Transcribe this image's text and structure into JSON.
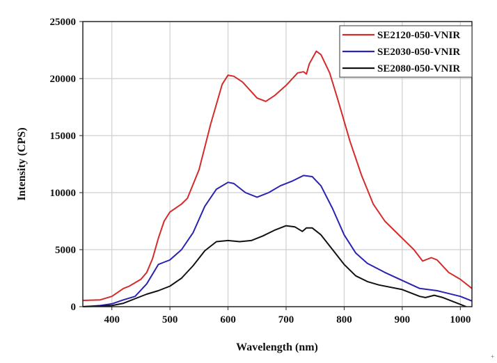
{
  "chart_data": {
    "type": "line",
    "title": "",
    "xlabel": "Wavelength (nm)",
    "ylabel": "Intensity (CPS)",
    "xlim": [
      350,
      1020
    ],
    "ylim": [
      0,
      25000
    ],
    "xticks": [
      400,
      500,
      600,
      700,
      800,
      900,
      1000
    ],
    "yticks": [
      0,
      5000,
      10000,
      15000,
      20000,
      25000
    ],
    "grid": true,
    "legend_position": "top-right",
    "series": [
      {
        "name": "SE2120-050-VNIR",
        "color": "#d42a2a",
        "x": [
          350,
          380,
          400,
          420,
          430,
          450,
          460,
          470,
          480,
          490,
          500,
          520,
          530,
          550,
          570,
          590,
          600,
          610,
          625,
          650,
          665,
          680,
          700,
          720,
          730,
          735,
          740,
          752,
          760,
          775,
          790,
          810,
          830,
          850,
          870,
          900,
          920,
          935,
          950,
          960,
          980,
          1000,
          1020
        ],
        "y": [
          550,
          600,
          900,
          1600,
          1800,
          2400,
          3000,
          4200,
          6000,
          7500,
          8300,
          9000,
          9500,
          12000,
          16000,
          19500,
          20300,
          20200,
          19700,
          18300,
          18000,
          18500,
          19400,
          20500,
          20600,
          20400,
          21300,
          22400,
          22100,
          20500,
          18000,
          14500,
          11500,
          9000,
          7500,
          6000,
          5000,
          4000,
          4300,
          4100,
          3000,
          2400,
          1600
        ]
      },
      {
        "name": "SE2030-050-VNIR",
        "color": "#2a22b0",
        "x": [
          350,
          380,
          400,
          420,
          440,
          460,
          480,
          490,
          500,
          520,
          540,
          560,
          580,
          600,
          610,
          630,
          650,
          670,
          690,
          710,
          730,
          745,
          760,
          780,
          800,
          820,
          840,
          870,
          900,
          930,
          960,
          1000,
          1020
        ],
        "y": [
          0,
          100,
          250,
          600,
          900,
          2000,
          3700,
          3900,
          4100,
          5000,
          6500,
          8800,
          10300,
          10900,
          10800,
          10000,
          9600,
          10000,
          10600,
          11000,
          11500,
          11400,
          10600,
          8600,
          6300,
          4700,
          3800,
          3000,
          2300,
          1600,
          1400,
          900,
          500
        ]
      },
      {
        "name": "SE2080-050-VNIR",
        "color": "#111111",
        "x": [
          350,
          400,
          420,
          440,
          460,
          480,
          500,
          520,
          540,
          560,
          580,
          600,
          620,
          640,
          660,
          680,
          700,
          715,
          728,
          735,
          745,
          760,
          780,
          800,
          820,
          840,
          860,
          900,
          930,
          940,
          955,
          970,
          1000,
          1010
        ],
        "y": [
          0,
          100,
          300,
          700,
          1100,
          1400,
          1800,
          2500,
          3600,
          4900,
          5700,
          5800,
          5700,
          5800,
          6200,
          6700,
          7100,
          7000,
          6600,
          6900,
          6900,
          6300,
          5000,
          3700,
          2700,
          2200,
          1900,
          1500,
          900,
          800,
          1000,
          800,
          200,
          0
        ]
      }
    ]
  },
  "corner_mark": "+"
}
